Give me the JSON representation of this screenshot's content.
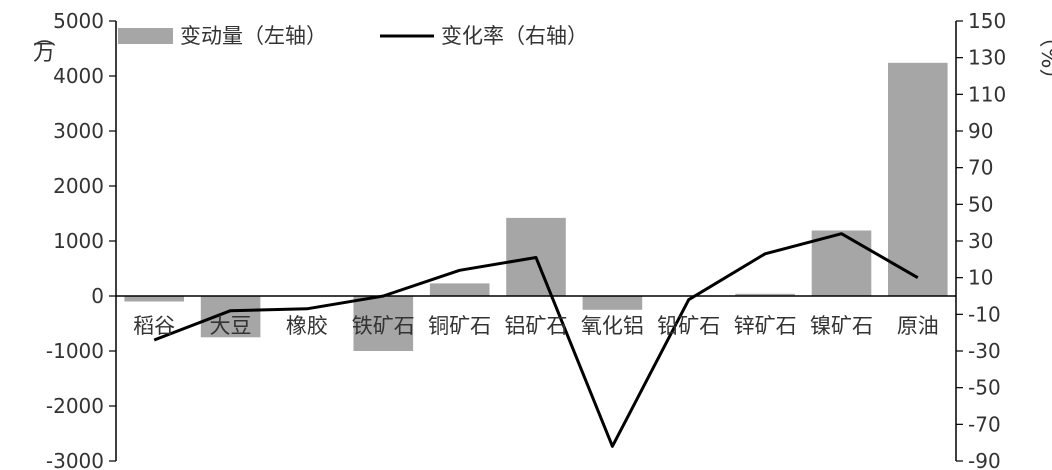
{
  "chart_data": {
    "type": "bar",
    "categories": [
      "稻谷",
      "大豆",
      "橡胶",
      "铁矿石",
      "铜矿石",
      "铝矿石",
      "氧化铝",
      "铅矿石",
      "锌矿石",
      "镍矿石",
      "原油"
    ],
    "series": [
      {
        "name": "变动量（左轴）",
        "type": "bar",
        "axis": "left",
        "color": "#a6a6a6",
        "values": [
          -100,
          -750,
          0,
          -1000,
          230,
          1420,
          -250,
          0,
          40,
          1190,
          4240
        ]
      },
      {
        "name": "变化率（右轴）",
        "type": "line",
        "axis": "right",
        "color": "#000000",
        "values": [
          -24,
          -8,
          -7,
          0,
          14,
          21,
          -82,
          -2,
          23,
          34,
          10
        ]
      }
    ],
    "left_axis": {
      "label_top": "（",
      "label_main": "万",
      "ylim": [
        -3000,
        5000
      ],
      "ticks": [
        -3000,
        -2000,
        -1000,
        0,
        1000,
        2000,
        3000,
        4000,
        5000
      ]
    },
    "right_axis": {
      "label": "（%）",
      "ylim": [
        -90,
        150
      ],
      "ticks": [
        -90,
        -70,
        -50,
        -30,
        -10,
        10,
        30,
        50,
        70,
        90,
        110,
        130,
        150
      ]
    },
    "legend_position": "top-left",
    "grid": false
  }
}
